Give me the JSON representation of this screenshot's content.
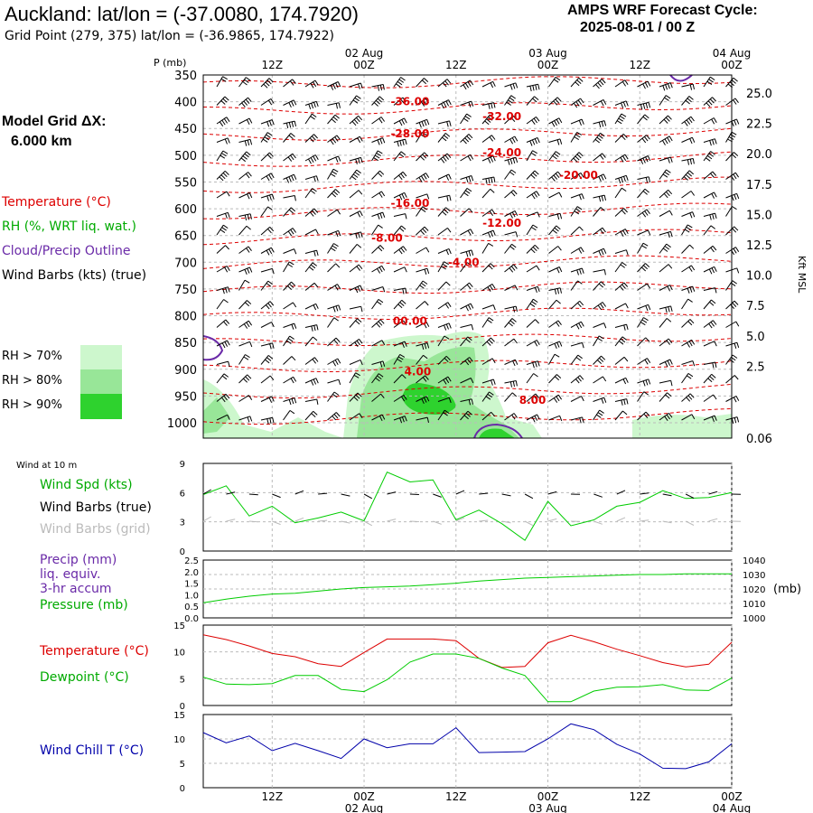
{
  "header": {
    "title": "Auckland:  lat/lon = (-37.0080, 174.7920)",
    "subtitle": "Grid Point (279, 375) lat/lon = (-36.9865, 174.7922)",
    "cycle_line1": "AMPS WRF Forecast Cycle:",
    "cycle_line2": "2025-08-01 / 00  Z",
    "grid_label": "Model Grid ΔX:",
    "grid_value": "6.000 km"
  },
  "legend": {
    "temperature": "Temperature (°C)",
    "rh": "RH (%, WRT liq. wat.)",
    "cloud": "Cloud/Precip Outline",
    "wind": "Wind Barbs (kts) (true)",
    "rh70": "RH > 70%",
    "rh80": "RH > 80%",
    "rh90": "RH > 90%",
    "colors": {
      "rh70": "#cdf7cd",
      "rh80": "#98e698",
      "rh90": "#2ed22e",
      "temp": "#dd0000",
      "cloud": "#6a2aa8"
    }
  },
  "time_axis": {
    "top_dates": [
      "02 Aug",
      "03 Aug",
      "04 Aug"
    ],
    "ticks": [
      "12Z",
      "00Z",
      "12Z",
      "00Z",
      "12Z",
      "00Z"
    ],
    "bottom_dates": [
      "02 Aug",
      "03 Aug",
      "04 Aug"
    ],
    "hours": [
      12,
      24,
      36,
      48,
      60,
      72
    ],
    "range_hours": [
      3,
      72
    ]
  },
  "chart_data": [
    {
      "type": "heatmap",
      "panel": "time-height cross section",
      "p_label": "P (mb)",
      "pressure_levels": [
        350,
        400,
        450,
        500,
        550,
        600,
        650,
        700,
        750,
        800,
        850,
        900,
        950,
        1000
      ],
      "height_label": "Kft MSL",
      "height_ticks": [
        "25.0",
        "22.5",
        "20.0",
        "17.5",
        "15.0",
        "12.5",
        "10.0",
        "7.5",
        "5.0",
        "2.5",
        "0.06"
      ],
      "temperature_labels": [
        {
          "text": "-36.00",
          "hour": 30,
          "p": 400
        },
        {
          "text": "-32.00",
          "hour": 42,
          "p": 428
        },
        {
          "text": "-28.00",
          "hour": 30,
          "p": 460
        },
        {
          "text": "-24.00",
          "hour": 42,
          "p": 495
        },
        {
          "text": "-20.00",
          "hour": 52,
          "p": 537
        },
        {
          "text": "-16.00",
          "hour": 30,
          "p": 590
        },
        {
          "text": "-12.00",
          "hour": 42,
          "p": 627
        },
        {
          "text": "-8.00",
          "hour": 27,
          "p": 655
        },
        {
          "text": "-4.00",
          "hour": 37,
          "p": 700
        },
        {
          "text": "00.00",
          "hour": 30,
          "p": 810
        },
        {
          "text": "4.00",
          "hour": 31,
          "p": 905
        },
        {
          "text": "8.00",
          "hour": 46,
          "p": 958
        }
      ]
    },
    {
      "type": "line",
      "panel": "wind",
      "header": "Wind at 10 m",
      "labels": [
        "Wind Spd (kts)",
        "Wind Barbs (true)",
        "Wind Barbs (grid)"
      ],
      "y_ticks": [
        "9",
        "6",
        "3",
        "0"
      ],
      "ylim": [
        0,
        9
      ],
      "x": [
        3,
        6,
        9,
        12,
        15,
        18,
        21,
        24,
        27,
        30,
        33,
        36,
        39,
        42,
        45,
        48,
        51,
        54,
        57,
        60,
        63,
        66,
        69,
        72
      ],
      "series": [
        {
          "name": "Wind Spd (kts)",
          "color": "#00cc00",
          "values": [
            5.8,
            6.7,
            3.6,
            4.6,
            2.9,
            3.4,
            4.0,
            3.1,
            8.1,
            7.1,
            7.3,
            3.2,
            4.2,
            2.8,
            1.1,
            5.1,
            2.6,
            3.2,
            4.6,
            5.0,
            6.2,
            5.4,
            5.5,
            6.0
          ]
        }
      ]
    },
    {
      "type": "line",
      "panel": "precip/pressure",
      "labels": [
        "Precip (mm)",
        "liq. equiv.",
        "3-hr accum",
        "Pressure (mb)"
      ],
      "left_ticks": [
        "2.5",
        "2.0",
        "1.5",
        "1.0",
        "0.5",
        "0.0"
      ],
      "right_ticks": [
        "1040",
        "1030",
        "1020",
        "1010",
        "1000"
      ],
      "right_unit": "(mb)",
      "ylim": [
        1000,
        1040
      ],
      "x": [
        3,
        6,
        9,
        12,
        15,
        18,
        21,
        24,
        27,
        30,
        33,
        36,
        39,
        42,
        45,
        48,
        51,
        54,
        57,
        60,
        63,
        66,
        69,
        72
      ],
      "series": [
        {
          "name": "Pressure (mb)",
          "color": "#00cc00",
          "values": [
            1010.5,
            1013,
            1015,
            1016.5,
            1017,
            1018.5,
            1020,
            1021,
            1021.5,
            1022,
            1023,
            1024,
            1025.5,
            1026.5,
            1027.5,
            1028,
            1028.5,
            1029,
            1029.5,
            1030,
            1030,
            1030.5,
            1030.5,
            1030.5
          ]
        }
      ]
    },
    {
      "type": "line",
      "panel": "temperature",
      "labels": [
        "Temperature (°C)",
        "Dewpoint (°C)"
      ],
      "y_ticks": [
        "15",
        "10",
        "5",
        "0"
      ],
      "ylim": [
        0,
        15
      ],
      "x": [
        3,
        6,
        9,
        12,
        15,
        18,
        21,
        24,
        27,
        30,
        33,
        36,
        39,
        42,
        45,
        48,
        51,
        54,
        57,
        60,
        63,
        66,
        69,
        72
      ],
      "series": [
        {
          "name": "Temperature (°C)",
          "color": "#dd0000",
          "values": [
            13.2,
            12.3,
            11.1,
            9.7,
            9.1,
            7.8,
            7.3,
            9.9,
            12.4,
            12.4,
            12.4,
            12.1,
            8.8,
            7.1,
            7.3,
            11.7,
            13.1,
            11.9,
            10.5,
            9.3,
            8.0,
            7.2,
            7.7,
            11.8
          ]
        },
        {
          "name": "Dewpoint (°C)",
          "color": "#00cc00",
          "values": [
            5.3,
            4.0,
            3.9,
            4.1,
            5.6,
            5.6,
            3.0,
            2.6,
            4.8,
            8.1,
            9.6,
            9.6,
            8.8,
            7.0,
            5.6,
            0.7,
            0.7,
            2.7,
            3.4,
            3.5,
            3.9,
            2.9,
            2.8,
            5.1
          ]
        }
      ]
    },
    {
      "type": "line",
      "panel": "wind chill",
      "labels": [
        "Wind Chill T (°C)"
      ],
      "y_ticks": [
        "15",
        "10",
        "5",
        "0"
      ],
      "ylim": [
        0,
        15
      ],
      "x": [
        3,
        6,
        9,
        12,
        15,
        18,
        21,
        24,
        27,
        30,
        33,
        36,
        39,
        42,
        45,
        48,
        51,
        54,
        57,
        60,
        63,
        66,
        69,
        72
      ],
      "series": [
        {
          "name": "Wind Chill T (°C)",
          "color": "#0000aa",
          "values": [
            11.3,
            9.2,
            10.6,
            7.6,
            9.1,
            7.6,
            6.0,
            10.0,
            8.2,
            9.0,
            9.0,
            12.3,
            7.2,
            7.3,
            7.4,
            10.0,
            13.1,
            11.9,
            8.9,
            6.9,
            4.0,
            3.9,
            5.3,
            9.0
          ]
        }
      ]
    }
  ]
}
